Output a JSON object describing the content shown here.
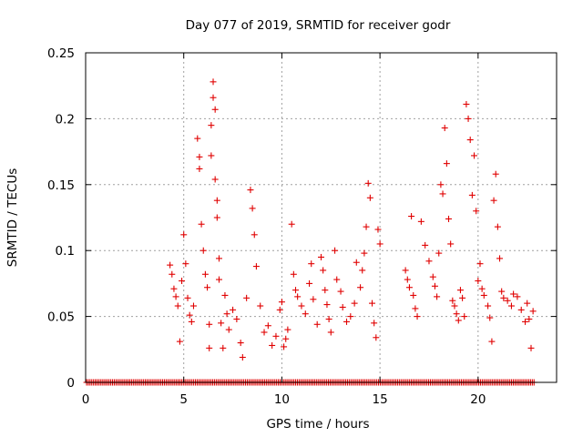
{
  "chart_data": {
    "type": "scatter",
    "title": "Day 077 of 2019, SRMTID for receiver godr",
    "xlabel": "GPS time / hours",
    "ylabel": "SRMTID / TECUs",
    "xlim": [
      0,
      24
    ],
    "ylim": [
      0,
      0.25
    ],
    "xticks": [
      0,
      5,
      10,
      15,
      20
    ],
    "xtick_labels": [
      "0",
      "5",
      "10",
      "15",
      "20"
    ],
    "yticks": [
      0,
      0.05,
      0.1,
      0.15,
      0.2,
      0.25
    ],
    "ytick_labels": [
      "0",
      "0.05",
      "0.1",
      "0.15",
      "0.2",
      "0.25"
    ],
    "grid": true,
    "marker": "+",
    "color": "#e00000",
    "series": [
      {
        "name": "SRMTID",
        "points": [
          [
            4.3,
            0.089
          ],
          [
            4.4,
            0.082
          ],
          [
            4.5,
            0.071
          ],
          [
            4.6,
            0.065
          ],
          [
            4.7,
            0.058
          ],
          [
            4.8,
            0.031
          ],
          [
            4.9,
            0.077
          ],
          [
            5.0,
            0.112
          ],
          [
            5.1,
            0.09
          ],
          [
            5.2,
            0.064
          ],
          [
            5.3,
            0.051
          ],
          [
            5.4,
            0.046
          ],
          [
            5.5,
            0.058
          ],
          [
            5.7,
            0.185
          ],
          [
            5.8,
            0.171
          ],
          [
            5.8,
            0.162
          ],
          [
            5.9,
            0.12
          ],
          [
            6.0,
            0.1
          ],
          [
            6.1,
            0.082
          ],
          [
            6.2,
            0.072
          ],
          [
            6.3,
            0.044
          ],
          [
            6.3,
            0.026
          ],
          [
            6.4,
            0.195
          ],
          [
            6.4,
            0.172
          ],
          [
            6.5,
            0.228
          ],
          [
            6.5,
            0.216
          ],
          [
            6.6,
            0.207
          ],
          [
            6.6,
            0.154
          ],
          [
            6.7,
            0.138
          ],
          [
            6.7,
            0.125
          ],
          [
            6.8,
            0.094
          ],
          [
            6.8,
            0.078
          ],
          [
            6.9,
            0.045
          ],
          [
            7.0,
            0.026
          ],
          [
            7.1,
            0.066
          ],
          [
            7.2,
            0.052
          ],
          [
            7.3,
            0.04
          ],
          [
            7.5,
            0.055
          ],
          [
            7.7,
            0.048
          ],
          [
            7.9,
            0.03
          ],
          [
            8.0,
            0.019
          ],
          [
            8.2,
            0.064
          ],
          [
            8.4,
            0.146
          ],
          [
            8.5,
            0.132
          ],
          [
            8.6,
            0.112
          ],
          [
            8.7,
            0.088
          ],
          [
            8.9,
            0.058
          ],
          [
            9.1,
            0.038
          ],
          [
            9.3,
            0.043
          ],
          [
            9.5,
            0.028
          ],
          [
            9.7,
            0.035
          ],
          [
            9.9,
            0.055
          ],
          [
            10.0,
            0.061
          ],
          [
            10.1,
            0.027
          ],
          [
            10.2,
            0.033
          ],
          [
            10.3,
            0.04
          ],
          [
            10.5,
            0.12
          ],
          [
            10.6,
            0.082
          ],
          [
            10.7,
            0.07
          ],
          [
            10.8,
            0.065
          ],
          [
            11.0,
            0.058
          ],
          [
            11.2,
            0.052
          ],
          [
            11.4,
            0.075
          ],
          [
            11.5,
            0.09
          ],
          [
            11.6,
            0.063
          ],
          [
            11.8,
            0.044
          ],
          [
            12.0,
            0.095
          ],
          [
            12.1,
            0.085
          ],
          [
            12.2,
            0.07
          ],
          [
            12.3,
            0.059
          ],
          [
            12.4,
            0.048
          ],
          [
            12.5,
            0.038
          ],
          [
            12.7,
            0.1
          ],
          [
            12.8,
            0.078
          ],
          [
            13.0,
            0.069
          ],
          [
            13.1,
            0.057
          ],
          [
            13.3,
            0.046
          ],
          [
            13.5,
            0.05
          ],
          [
            13.7,
            0.06
          ],
          [
            13.8,
            0.091
          ],
          [
            14.0,
            0.072
          ],
          [
            14.1,
            0.085
          ],
          [
            14.2,
            0.098
          ],
          [
            14.3,
            0.118
          ],
          [
            14.4,
            0.151
          ],
          [
            14.5,
            0.14
          ],
          [
            14.6,
            0.06
          ],
          [
            14.7,
            0.045
          ],
          [
            14.8,
            0.034
          ],
          [
            14.9,
            0.116
          ],
          [
            15.0,
            0.105
          ],
          [
            16.3,
            0.085
          ],
          [
            16.4,
            0.078
          ],
          [
            16.5,
            0.072
          ],
          [
            16.6,
            0.126
          ],
          [
            16.7,
            0.066
          ],
          [
            16.8,
            0.056
          ],
          [
            16.9,
            0.05
          ],
          [
            17.1,
            0.122
          ],
          [
            17.3,
            0.104
          ],
          [
            17.5,
            0.092
          ],
          [
            17.7,
            0.08
          ],
          [
            17.8,
            0.073
          ],
          [
            17.9,
            0.065
          ],
          [
            18.0,
            0.098
          ],
          [
            18.1,
            0.15
          ],
          [
            18.2,
            0.143
          ],
          [
            18.3,
            0.193
          ],
          [
            18.4,
            0.166
          ],
          [
            18.5,
            0.124
          ],
          [
            18.6,
            0.105
          ],
          [
            18.7,
            0.062
          ],
          [
            18.8,
            0.058
          ],
          [
            18.9,
            0.052
          ],
          [
            19.0,
            0.047
          ],
          [
            19.1,
            0.07
          ],
          [
            19.2,
            0.064
          ],
          [
            19.3,
            0.05
          ],
          [
            19.4,
            0.211
          ],
          [
            19.5,
            0.2
          ],
          [
            19.6,
            0.184
          ],
          [
            19.7,
            0.142
          ],
          [
            19.8,
            0.172
          ],
          [
            19.9,
            0.13
          ],
          [
            20.0,
            0.077
          ],
          [
            20.1,
            0.09
          ],
          [
            20.2,
            0.071
          ],
          [
            20.3,
            0.066
          ],
          [
            20.5,
            0.058
          ],
          [
            20.6,
            0.049
          ],
          [
            20.7,
            0.031
          ],
          [
            20.8,
            0.138
          ],
          [
            20.9,
            0.158
          ],
          [
            21.0,
            0.118
          ],
          [
            21.1,
            0.094
          ],
          [
            21.2,
            0.069
          ],
          [
            21.3,
            0.064
          ],
          [
            21.5,
            0.062
          ],
          [
            21.7,
            0.058
          ],
          [
            21.8,
            0.067
          ],
          [
            22.0,
            0.065
          ],
          [
            22.2,
            0.055
          ],
          [
            22.4,
            0.046
          ],
          [
            22.5,
            0.06
          ],
          [
            22.6,
            0.048
          ],
          [
            22.7,
            0.026
          ],
          [
            22.8,
            0.054
          ]
        ],
        "zero_points_x_range": [
          0.05,
          22.85
        ],
        "zero_points_count": 260
      }
    ]
  }
}
